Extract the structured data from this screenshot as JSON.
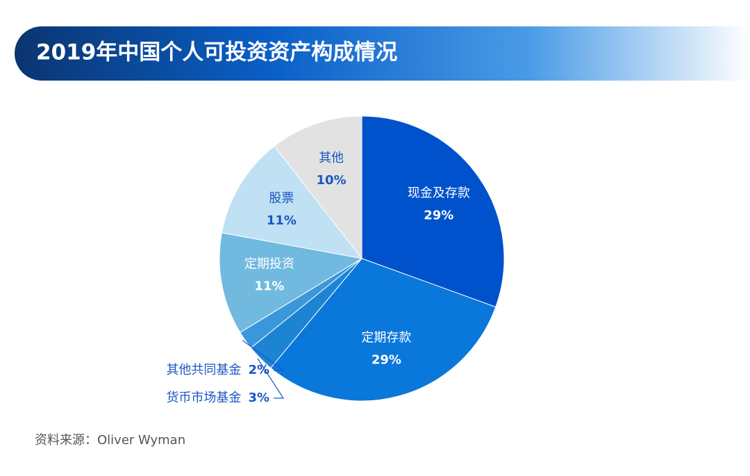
{
  "chart_data": {
    "type": "pie",
    "title": "2019年中国个人可投资资产构成情况",
    "categories": [
      "现金及存款",
      "定期存款",
      "货币市场基金",
      "其他共同基金",
      "定期投资",
      "股票",
      "其他"
    ],
    "values": [
      29,
      29,
      3,
      2,
      11,
      11,
      10
    ],
    "value_labels": [
      "29%",
      "29%",
      "3%",
      "2%",
      "11%",
      "11%",
      "10%"
    ],
    "colors": [
      "#0052cc",
      "#0a77db",
      "#1d84d3",
      "#3a98da",
      "#72b9e0",
      "#c0e0f4",
      "#e2e2e2"
    ],
    "source": "资料来源：Oliver Wyman"
  }
}
